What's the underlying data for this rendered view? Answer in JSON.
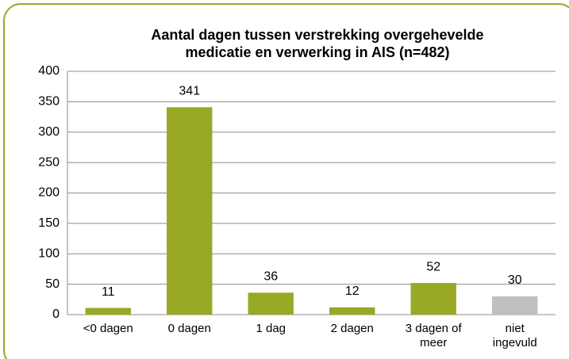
{
  "chart_data": {
    "type": "bar",
    "title": "Aantal dagen tussen verstrekking overgehevelde medicatie en verwerking in AIS (n=482)",
    "categories": [
      "<0 dagen",
      "0 dagen",
      "1 dag",
      "2 dagen",
      "3 dagen of meer",
      "niet ingevuld"
    ],
    "values": [
      11,
      341,
      36,
      12,
      52,
      30
    ],
    "colors": [
      "#99a825",
      "#99a825",
      "#99a825",
      "#99a825",
      "#99a825",
      "#bfbfbf"
    ],
    "ylim": [
      0,
      400
    ],
    "yticks": [
      0,
      50,
      100,
      150,
      200,
      250,
      300,
      350,
      400
    ],
    "grid": true
  }
}
